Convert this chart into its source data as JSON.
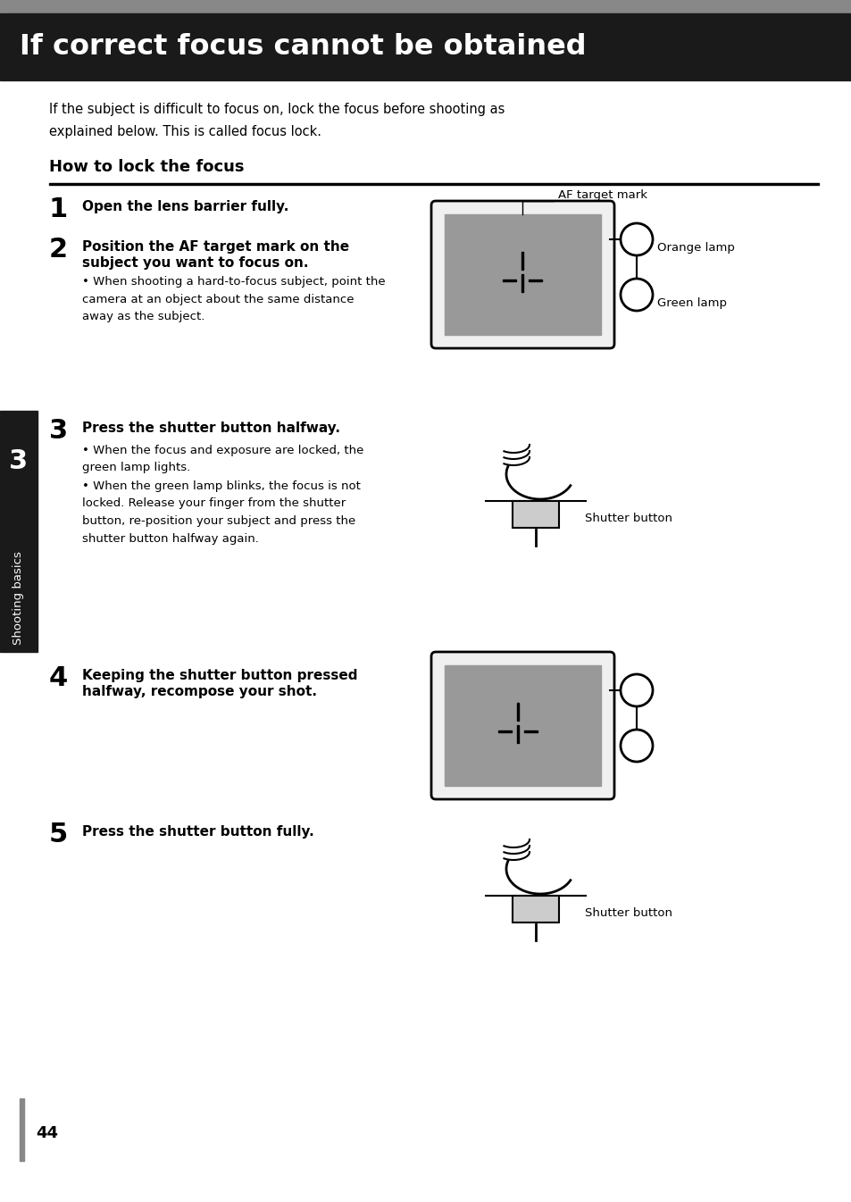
{
  "title": "If correct focus cannot be obtained",
  "title_bg": "#1a1a1a",
  "title_color": "#ffffff",
  "page_bg": "#ffffff",
  "intro_text_line1": "If the subject is difficult to focus on, lock the focus before shooting as",
  "intro_text_line2": "explained below. This is called focus lock.",
  "section_title": "How to lock the focus",
  "step1_bold": "Open the lens barrier fully.",
  "step2_bold_line1": "Position the AF target mark on the",
  "step2_bold_line2": "subject you want to focus on.",
  "step2_bullet": "When shooting a hard-to-focus subject, point the\ncamera at an object about the same distance\naway as the subject.",
  "step3_bold": "Press the shutter button halfway.",
  "step3_bullet1": "When the focus and exposure are locked, the\ngreen lamp lights.",
  "step3_bullet2": "When the green lamp blinks, the focus is not\nlocked. Release your finger from the shutter\nbutton, re-position your subject and press the\nshutter button halfway again.",
  "step4_bold_line1": "Keeping the shutter button pressed",
  "step4_bold_line2": "halfway, recompose your shot.",
  "step5_bold": "Press the shutter button fully.",
  "sidebar_num": "3",
  "sidebar_text": "Shooting basics",
  "sidebar_bg": "#1a1a1a",
  "sidebar_color": "#ffffff",
  "page_num": "44",
  "af_label": "AF target mark",
  "orange_label": "Orange lamp",
  "green_label": "Green lamp",
  "shutter_label": "Shutter button"
}
